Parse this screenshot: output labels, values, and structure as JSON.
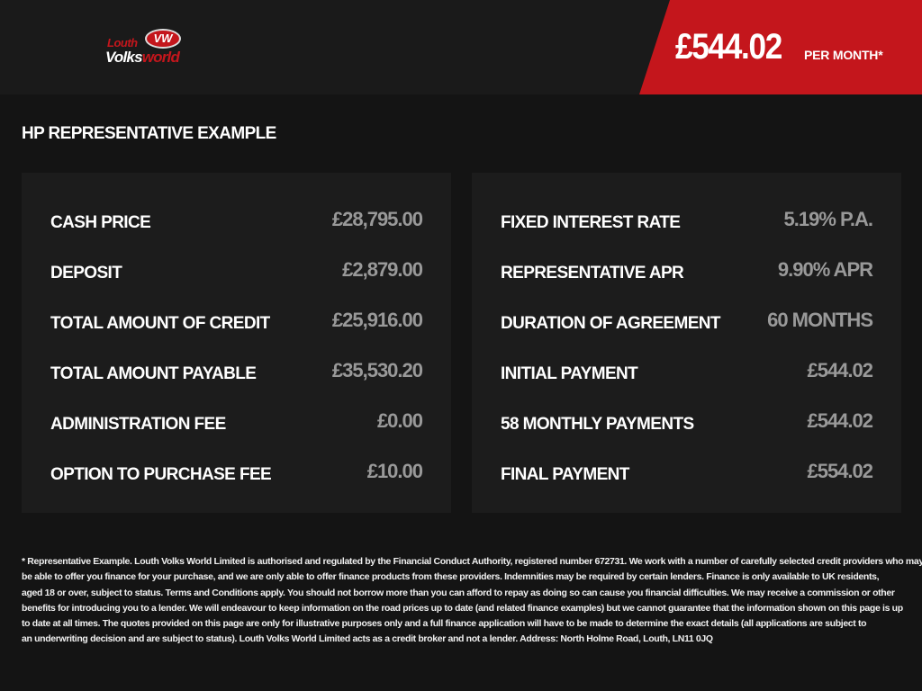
{
  "logo": {
    "text_top": "Louth",
    "badge": "VW",
    "text_main": "Volks",
    "text_accent": "world"
  },
  "header": {
    "price": "£544.02",
    "per_month": "PER MONTH*",
    "accent_color": "#c4161c"
  },
  "title": "HP REPRESENTATIVE EXAMPLE",
  "left_panel": [
    {
      "label": "CASH PRICE",
      "value": "£28,795.00"
    },
    {
      "label": "DEPOSIT",
      "value": "£2,879.00"
    },
    {
      "label": "TOTAL AMOUNT OF CREDIT",
      "value": "£25,916.00"
    },
    {
      "label": "TOTAL AMOUNT PAYABLE",
      "value": "£35,530.20"
    },
    {
      "label": "ADMINISTRATION FEE",
      "value": "£0.00"
    },
    {
      "label": "OPTION TO PURCHASE FEE",
      "value": "£10.00"
    }
  ],
  "right_panel": [
    {
      "label": "FIXED INTEREST RATE",
      "value": "5.19% P.A."
    },
    {
      "label": "REPRESENTATIVE APR",
      "value": "9.90% APR"
    },
    {
      "label": "DURATION OF AGREEMENT",
      "value": "60 MONTHS"
    },
    {
      "label": "INITIAL PAYMENT",
      "value": "£544.02"
    },
    {
      "label": "58 MONTHLY PAYMENTS",
      "value": "£544.02"
    },
    {
      "label": "FINAL PAYMENT",
      "value": "£554.02"
    }
  ],
  "footer_lines": [
    "* Representative Example. Louth Volks World Limited is authorised and regulated by the Financial Conduct Authority, registered number 672731. We work with a number of carefully selected credit providers who may",
    "be able to offer you finance for your purchase, and we are only able to offer finance products from these providers. Indemnities may be required by certain lenders. Finance is only available to UK residents,",
    "aged 18 or over, subject to status. Terms and Conditions apply. You should not borrow more than you can afford to repay as doing so can cause you financial difficulties. We may receive a commission or other",
    "benefits for introducing you to a lender. We will endeavour to keep information on the road prices up to date (and related finance examples) but we cannot guarantee that the information shown on this page is up",
    "to date at all times. The quotes provided on this page are only for illustrative purposes only and a full finance application will have to be made to determine the exact details (all applications are subject to",
    "an underwriting decision and are subject to status). Louth Volks World Limited acts as a credit broker and not a lender. Address: North Holme Road, Louth, LN11 0JQ"
  ]
}
